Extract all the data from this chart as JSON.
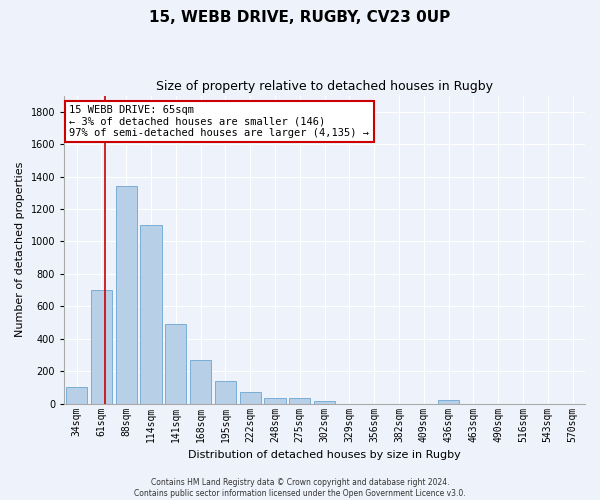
{
  "title": "15, WEBB DRIVE, RUGBY, CV23 0UP",
  "subtitle": "Size of property relative to detached houses in Rugby",
  "xlabel": "Distribution of detached houses by size in Rugby",
  "ylabel": "Number of detached properties",
  "bar_labels": [
    "34sqm",
    "61sqm",
    "88sqm",
    "114sqm",
    "141sqm",
    "168sqm",
    "195sqm",
    "222sqm",
    "248sqm",
    "275sqm",
    "302sqm",
    "329sqm",
    "356sqm",
    "382sqm",
    "409sqm",
    "436sqm",
    "463sqm",
    "490sqm",
    "516sqm",
    "543sqm",
    "570sqm"
  ],
  "bar_values": [
    100,
    700,
    1340,
    1100,
    490,
    270,
    140,
    70,
    35,
    35,
    15,
    0,
    0,
    0,
    0,
    20,
    0,
    0,
    0,
    0,
    0
  ],
  "bar_color": "#b8cfe8",
  "bar_edge_color": "#7aaed6",
  "ylim": [
    0,
    1900
  ],
  "yticks": [
    0,
    200,
    400,
    600,
    800,
    1000,
    1200,
    1400,
    1600,
    1800
  ],
  "red_line_x": 1.15,
  "annotation_text": "15 WEBB DRIVE: 65sqm\n← 3% of detached houses are smaller (146)\n97% of semi-detached houses are larger (4,135) →",
  "annotation_box_color": "#ffffff",
  "annotation_border_color": "#cc0000",
  "footer_line1": "Contains HM Land Registry data © Crown copyright and database right 2024.",
  "footer_line2": "Contains public sector information licensed under the Open Government Licence v3.0.",
  "background_color": "#eef2fa",
  "grid_color": "#ffffff",
  "title_fontsize": 11,
  "subtitle_fontsize": 9,
  "axis_label_fontsize": 8,
  "tick_fontsize": 7,
  "annotation_fontsize": 7.5,
  "footer_fontsize": 5.5
}
